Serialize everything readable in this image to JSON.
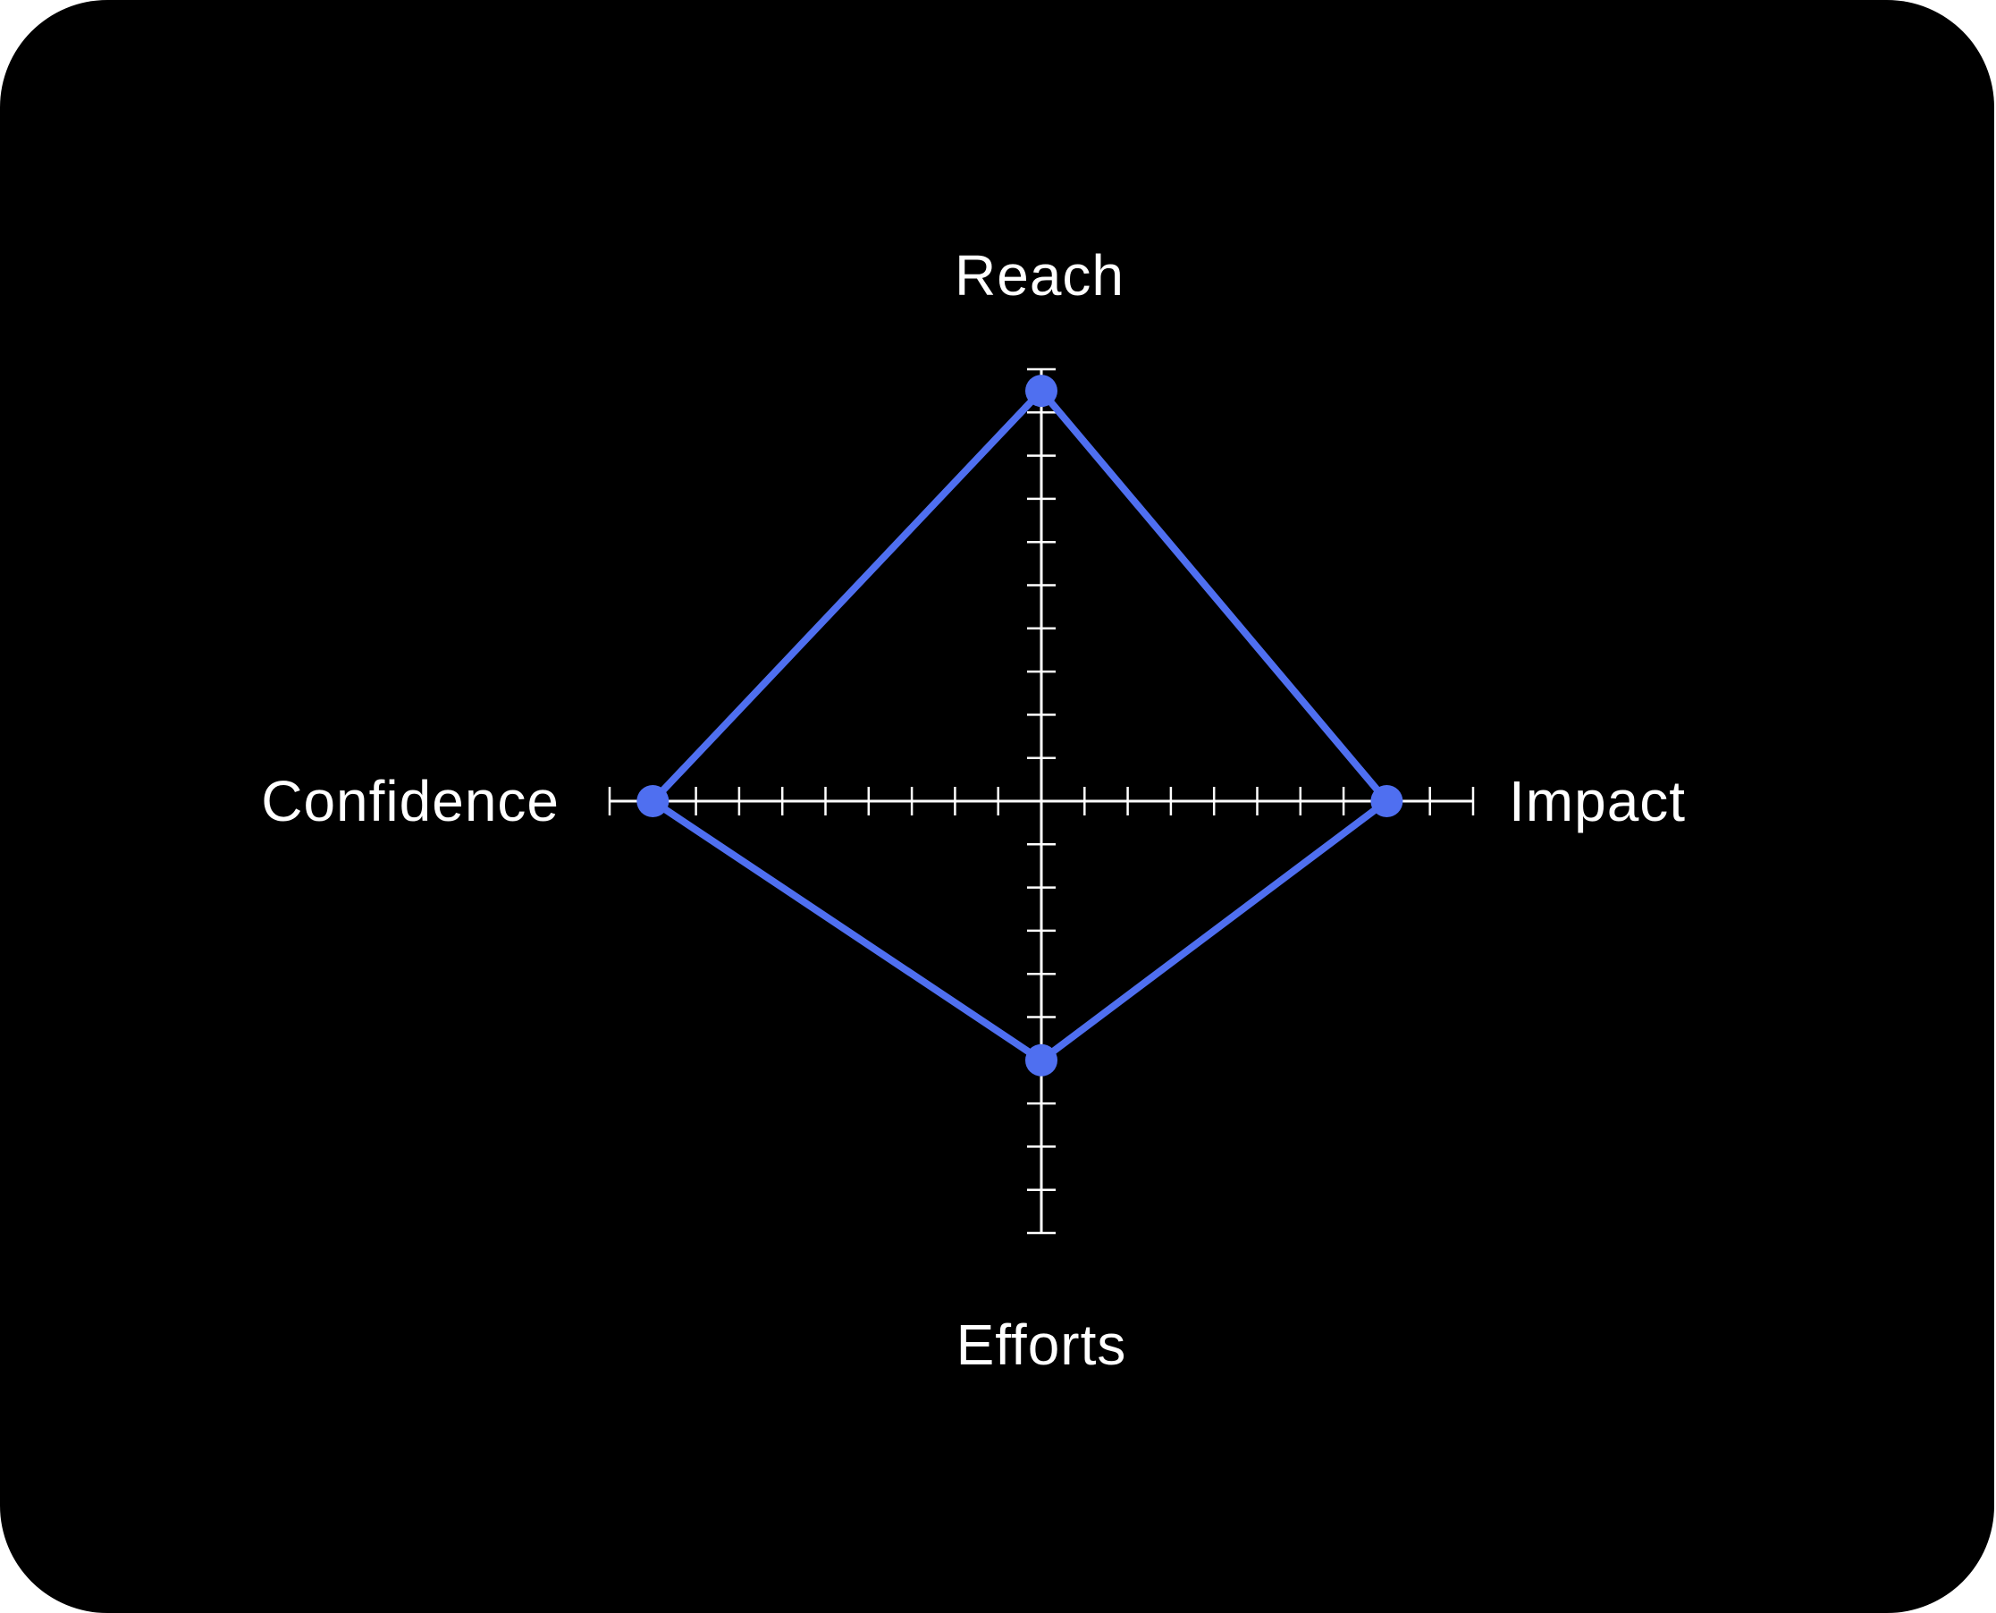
{
  "chart_data": {
    "type": "radar",
    "axes": [
      "Reach",
      "Impact",
      "Efforts",
      "Confidence"
    ],
    "axis_max": 10,
    "ticks_per_half_axis": 10,
    "series": [
      {
        "values": [
          9.5,
          8,
          6,
          9
        ]
      }
    ],
    "series_color": "#4f6ff0",
    "axis_color": "#ffffff",
    "background": "#000000"
  },
  "labels": {
    "reach": "Reach",
    "impact": "Impact",
    "efforts": "Efforts",
    "confidence": "Confidence"
  }
}
